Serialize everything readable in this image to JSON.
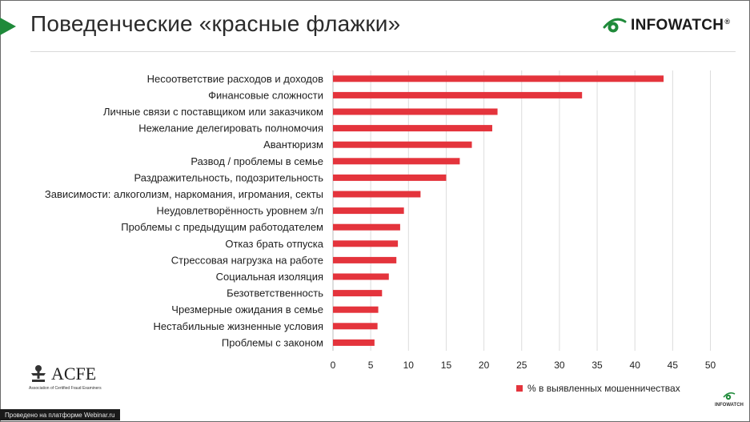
{
  "slide": {
    "title": "Поведенческие «красные флажки»"
  },
  "logo": {
    "text": "INFOWATCH",
    "reg": "®"
  },
  "acfe": {
    "name": "ACFE",
    "subtitle": "Association of Certified Fraud Examiners"
  },
  "footer": {
    "webinar": "Проведено на платформе Webinar.ru",
    "small_logo": "INFOWATCH"
  },
  "colors": {
    "bar": "#e4343c",
    "accent": "#1f8a3a"
  },
  "chart_data": {
    "type": "bar",
    "orientation": "horizontal",
    "title": "",
    "categories": [
      "Несоответствие расходов и доходов",
      "Финансовые сложности",
      "Личные связи с поставщиком или заказчиком",
      "Нежелание делегировать полномочия",
      "Авантюризм",
      "Развод / проблемы в семье",
      "Раздражительность, подозрительность",
      "Зависимости: алкоголизм, наркомания, игромания, секты",
      "Неудовлетворённость уровнем з/п",
      "Проблемы с предыдущим работодателем",
      "Отказ брать отпуска",
      "Стрессовая нагрузка на работе",
      "Социальная изоляция",
      "Безответственность",
      "Чрезмерные ожидания в семье",
      "Нестабильные жизненные условия",
      "Проблемы с законом"
    ],
    "series": [
      {
        "name": "% в выявленных мошенничествах",
        "values": [
          43.8,
          33.0,
          21.8,
          21.1,
          18.4,
          16.8,
          15.0,
          11.6,
          9.4,
          8.9,
          8.6,
          8.4,
          7.4,
          6.5,
          6.0,
          5.9,
          5.5
        ]
      }
    ],
    "xlim": [
      0,
      50
    ],
    "xticks": [
      "0",
      "5",
      "10",
      "15",
      "20",
      "25",
      "30",
      "35",
      "40",
      "45",
      "50"
    ],
    "grid": true,
    "legend_position": "bottom-right"
  }
}
